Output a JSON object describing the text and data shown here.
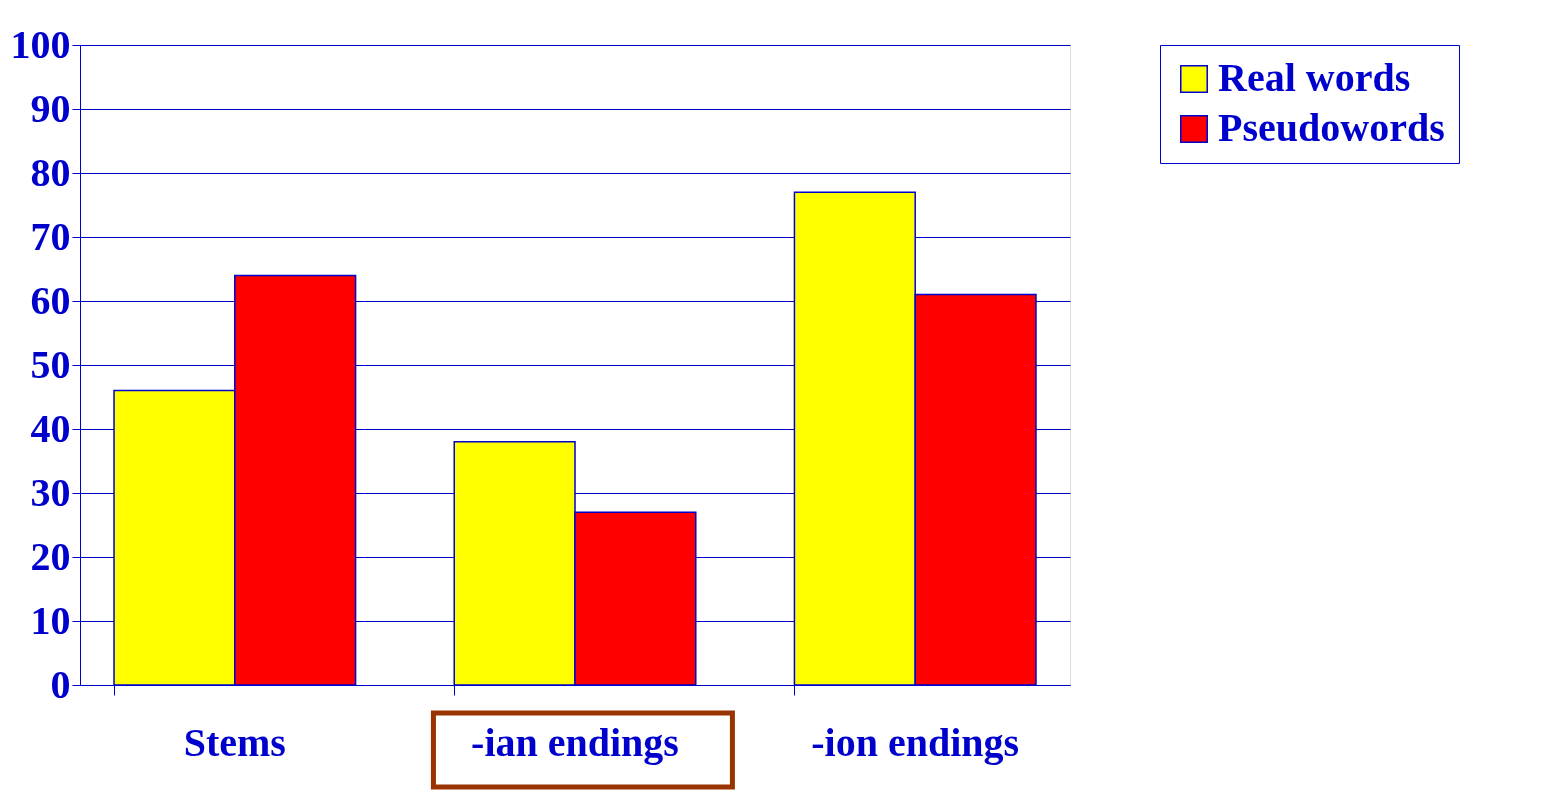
{
  "chart_data": {
    "type": "bar",
    "categories": [
      "Stems",
      "-ian endings",
      "-ion endings"
    ],
    "series": [
      {
        "name": "Real words",
        "color": "#ffff00",
        "values": [
          46,
          38,
          77
        ]
      },
      {
        "name": "Pseudowords",
        "color": "#ff0000",
        "values": [
          64,
          27,
          61
        ]
      }
    ],
    "ylim": [
      0,
      100
    ],
    "yticks": [
      0,
      10,
      20,
      30,
      40,
      50,
      60,
      70,
      80,
      90,
      100
    ],
    "grid": "y",
    "legend": "right"
  }
}
